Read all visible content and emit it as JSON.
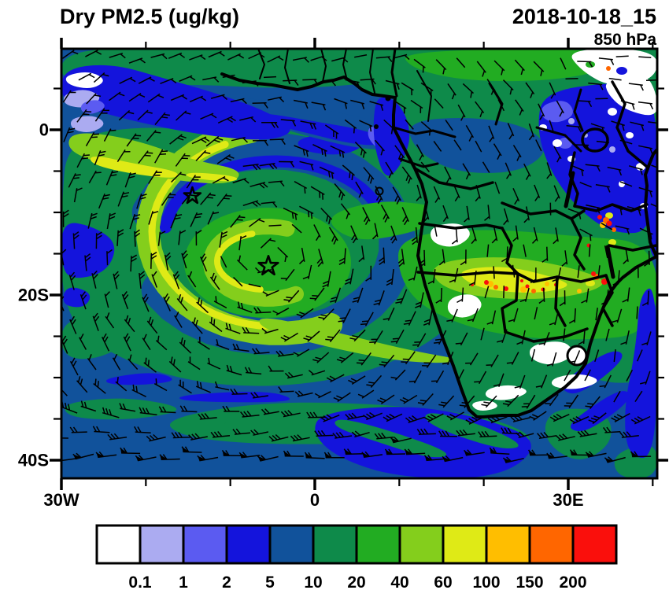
{
  "header": {
    "title": "Dry PM2.5 (ug/kg)",
    "datetime": "2018-10-18_15",
    "level": "850 hPa"
  },
  "axes": {
    "y_tick_labels": [
      "0",
      "20S",
      "40S"
    ],
    "x_tick_labels": [
      "30W",
      "0",
      "30E"
    ]
  },
  "colorbar": {
    "tick_labels": [
      "0.1",
      "1",
      "2",
      "5",
      "10",
      "20",
      "40",
      "60",
      "100",
      "150",
      "200"
    ],
    "colors": [
      "#FFFFFF",
      "#ABABF1",
      "#5B5BF1",
      "#1414DC",
      "#11529B",
      "#0E8A4A",
      "#22AC22",
      "#84CE1C",
      "#DFEA16",
      "#FFBE00",
      "#FF6600",
      "#FA0F0C"
    ]
  },
  "chart_data": {
    "type": "heatmap",
    "title": "Dry PM2.5 (ug/kg)",
    "units": "ug/kg",
    "datetime": "2018-10-18_15",
    "pressure_level_hPa": 850,
    "region": {
      "lon_min_deg": -30,
      "lon_max_deg": 40.5,
      "lat_min_deg": -42,
      "lat_max_deg": 10
    },
    "x_axis": {
      "tick_labels": [
        "30W",
        "0",
        "30E"
      ],
      "tick_lons_deg": [
        -30,
        0,
        30
      ],
      "minor_tick_interval_deg": 10
    },
    "y_axis": {
      "tick_labels": [
        "0",
        "20S",
        "40S"
      ],
      "tick_lats_deg": [
        0,
        -20,
        -40
      ],
      "minor_tick_interval_deg": 5
    },
    "color_levels": [
      0.1,
      1,
      2,
      5,
      10,
      20,
      40,
      60,
      100,
      150,
      200
    ],
    "color_palette": [
      "#FFFFFF",
      "#ABABF1",
      "#5B5BF1",
      "#1414DC",
      "#11529B",
      "#0E8A4A",
      "#22AC22",
      "#84CE1C",
      "#DFEA16",
      "#FFBE00",
      "#FF6600",
      "#FA0F0C"
    ],
    "overlays": [
      "wind barbs",
      "coastlines",
      "country borders",
      "lakes"
    ],
    "markers": [
      {
        "type": "star",
        "approx_lon_deg": -14.5,
        "approx_lat_deg": -8
      },
      {
        "type": "star",
        "approx_lon_deg": -5.5,
        "approx_lat_deg": -16.5
      }
    ],
    "features_summary": [
      "anticyclonic gyre of biomass-burning plume (40-100 ug/kg arcs) over SE Atlantic",
      "60-200+ ug/kg band with red fire hotspots over Angola, Zambia, Tanzania",
      "low PM (<5 ug/kg, blue/white/violet) over tropical N Atlantic, Gulf of Guinea, East Africa",
      "5-10 ug/kg (steel blue) over Southern Ocean with strong westerly wind barbs"
    ]
  }
}
